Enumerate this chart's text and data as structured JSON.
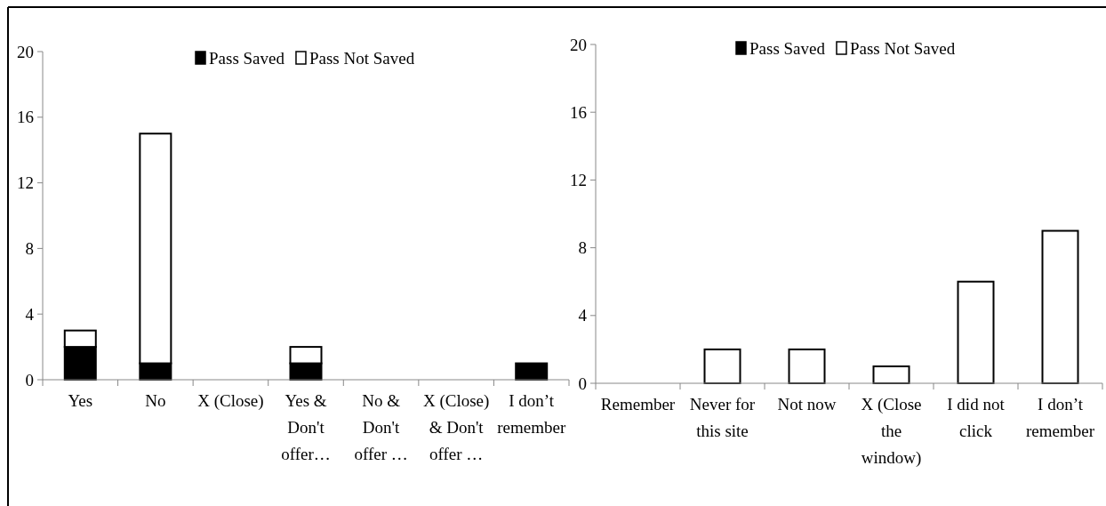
{
  "chart_data": [
    {
      "type": "bar",
      "stacked": true,
      "categories": [
        "Yes",
        "No",
        "X (Close)",
        "Yes & Don't offer…",
        "No & Don't offer …",
        "X (Close) & Don't offer …",
        "I don’t remember"
      ],
      "series": [
        {
          "name": "Pass Saved",
          "color": "#000000",
          "values": [
            2,
            1,
            0,
            1,
            0,
            0,
            1
          ]
        },
        {
          "name": "Pass Not Saved",
          "color": "#ffffff",
          "values": [
            1,
            14,
            0,
            1,
            0,
            0,
            0
          ]
        }
      ],
      "ylim": [
        0,
        20
      ],
      "yticks": [
        0,
        4,
        8,
        12,
        16,
        20
      ],
      "legend": "top",
      "grid": false
    },
    {
      "type": "bar",
      "stacked": true,
      "categories": [
        "Remember",
        "Never for this site",
        "Not now",
        "X (Close the window)",
        "I did not click",
        "I don’t remember"
      ],
      "series": [
        {
          "name": "Pass Saved",
          "color": "#000000",
          "values": [
            0,
            0,
            0,
            0,
            0,
            0
          ]
        },
        {
          "name": "Pass Not Saved",
          "color": "#ffffff",
          "values": [
            0,
            2,
            2,
            1,
            6,
            9
          ]
        }
      ],
      "ylim": [
        0,
        20
      ],
      "yticks": [
        0,
        4,
        8,
        12,
        16,
        20
      ],
      "legend": "top",
      "grid": false
    }
  ]
}
